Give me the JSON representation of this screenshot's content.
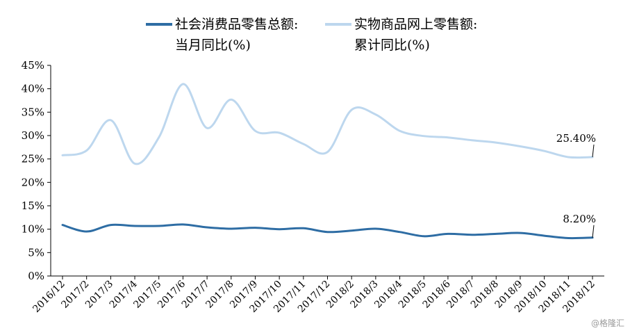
{
  "chart_data": {
    "type": "line",
    "categories": [
      "2016/12",
      "2017/2",
      "2017/3",
      "2017/4",
      "2017/5",
      "2017/6",
      "2017/7",
      "2017/8",
      "2017/9",
      "2017/10",
      "2017/11",
      "2017/12",
      "2018/2",
      "2018/3",
      "2018/4",
      "2018/5",
      "2018/6",
      "2018/7",
      "2018/8",
      "2018/9",
      "2018/10",
      "2018/11",
      "2018/12"
    ],
    "series": [
      {
        "name": "社会消费品零售总额:当月同比(%)",
        "color": "#2e6da4",
        "values": [
          10.9,
          9.5,
          10.9,
          10.7,
          10.7,
          11.0,
          10.4,
          10.1,
          10.3,
          10.0,
          10.2,
          9.4,
          9.7,
          10.1,
          9.4,
          8.5,
          9.0,
          8.8,
          9.0,
          9.2,
          8.6,
          8.1,
          8.2
        ],
        "end_label": "8.20%"
      },
      {
        "name": "实物商品网上零售额:累计同比(%)",
        "color": "#bdd7ee",
        "values": [
          25.8,
          26.8,
          33.3,
          24.0,
          29.6,
          41.0,
          31.6,
          37.7,
          31.0,
          30.6,
          28.2,
          26.5,
          35.5,
          34.5,
          31.0,
          29.9,
          29.6,
          29.0,
          28.5,
          27.7,
          26.7,
          25.4,
          25.4
        ],
        "end_label": "25.40%"
      }
    ],
    "ylim": [
      0,
      45
    ],
    "yticks": [
      "0%",
      "5%",
      "10%",
      "15%",
      "20%",
      "25%",
      "30%",
      "35%",
      "40%",
      "45%"
    ],
    "grid": false,
    "legend_position": "top"
  },
  "legend": {
    "series1": "社会消费品零售总额:\n当月同比(%)",
    "series2": "实物商品网上零售额:\n累计同比(%)"
  },
  "watermark": "@格隆汇"
}
